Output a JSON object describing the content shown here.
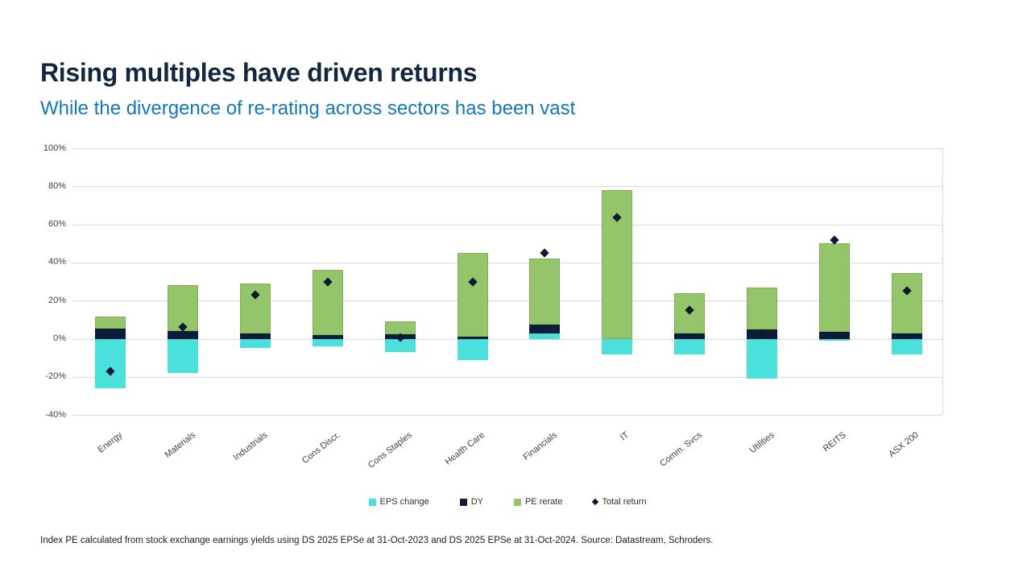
{
  "page": {
    "title": "Rising multiples have driven returns",
    "subtitle": "While the divergence of re-rating across sectors has been vast",
    "footnote": "Index PE calculated from stock exchange earnings yields using DS 2025 EPSe at 31-Oct-2023 and DS 2025 EPSe at 31-Oct-2024. Source: Datastream, Schroders."
  },
  "colors": {
    "title_text": "#12263f",
    "subtitle_text": "#1478b5",
    "eps_change": "#4be0dc",
    "dy": "#0d1c38",
    "pe_rerate": "#95c56a",
    "total_return": "#0b1a2e",
    "gridline": "#d9d9d9",
    "axis_text": "#404040"
  },
  "chart_data": {
    "type": "bar",
    "stacked": true,
    "title": "Rising multiples have driven returns",
    "categories": [
      "Energy",
      "Materials",
      "Industrials",
      "Cons Discr.",
      "Cons Staples",
      "Health Care",
      "Financials",
      "IT",
      "Comm. Svcs",
      "Utilities",
      "REITS",
      "ASX 200"
    ],
    "series": [
      {
        "name": "EPS change",
        "type": "bar",
        "color": "#4be0dc",
        "values": [
          -26,
          -18,
          -5,
          -4,
          -7,
          -11,
          3,
          -8,
          -8,
          -21,
          -1,
          -8
        ]
      },
      {
        "name": "DY",
        "type": "bar",
        "color": "#0d1c38",
        "values": [
          5.5,
          4,
          3,
          2,
          2.5,
          1,
          4.5,
          0,
          3,
          5,
          3.5,
          3
        ]
      },
      {
        "name": "PE rerate",
        "type": "bar",
        "color": "#95c56a",
        "values": [
          6,
          24,
          26,
          34,
          6.5,
          44,
          34.5,
          78,
          21,
          22,
          46.5,
          31.5
        ]
      },
      {
        "name": "Total return",
        "type": "scatter",
        "marker": "diamond",
        "color": "#0b1a2e",
        "values": [
          -17,
          6,
          23,
          30,
          0.5,
          30,
          45,
          63.5,
          15,
          3,
          52,
          25
        ]
      }
    ],
    "yticks": [
      100,
      80,
      60,
      40,
      20,
      0,
      -20,
      -40
    ],
    "ytick_suffix": "%",
    "ylim": [
      -40,
      100
    ],
    "grid": true,
    "legend_position": "bottom"
  }
}
